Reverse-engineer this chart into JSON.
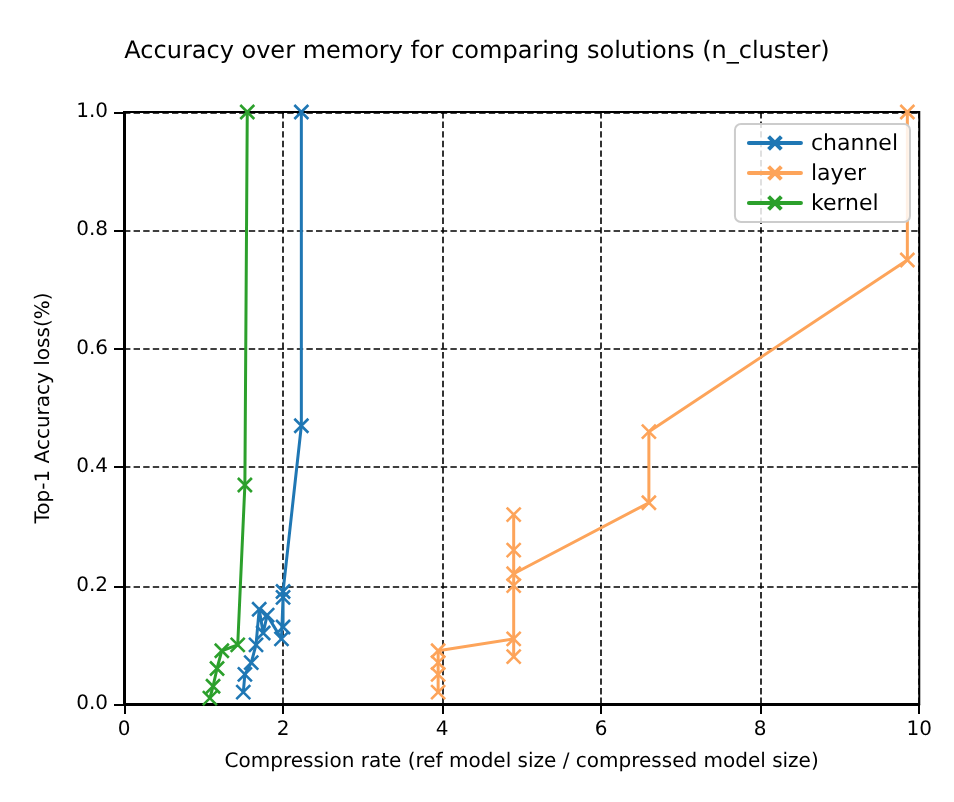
{
  "chart_data": {
    "type": "line",
    "title": "Accuracy over memory for comparing solutions (n_cluster)",
    "xlabel": "Compression rate (ref model size / compressed model size)",
    "ylabel": "Top-1 Accuracy loss(%)",
    "xlim": [
      0,
      10
    ],
    "xticks": [
      0,
      2,
      4,
      6,
      8,
      10
    ],
    "ylim": [
      0,
      1
    ],
    "yticks": [
      {
        "value": 0,
        "label": "0.0"
      },
      {
        "value": 0.2,
        "label": "0.2"
      },
      {
        "value": 0.4,
        "label": "0.4"
      },
      {
        "value": 0.6,
        "label": "0.6"
      },
      {
        "value": 0.8,
        "label": "0.8"
      },
      {
        "value": 1,
        "label": "1.0"
      }
    ],
    "grid": true,
    "legend": "top right",
    "marker": "cross",
    "line_style": "solid",
    "series": [
      {
        "name": "channel",
        "color": "#1f77b4",
        "x": [
          1.5,
          1.52,
          1.6,
          1.66,
          1.7,
          1.75,
          1.8,
          1.98,
          2.0,
          2.0,
          2.0,
          2.23,
          2.23
        ],
        "values": [
          0.02,
          0.05,
          0.07,
          0.1,
          0.16,
          0.12,
          0.15,
          0.11,
          0.18,
          0.13,
          0.19,
          0.47,
          1.0
        ]
      },
      {
        "name": "layer",
        "color": "#fda45a",
        "x": [
          3.95,
          3.95,
          3.95,
          3.95,
          4.9,
          4.9,
          4.9,
          4.9,
          4.9,
          4.9,
          6.6,
          6.6,
          9.85,
          9.85
        ],
        "values": [
          0.02,
          0.05,
          0.07,
          0.09,
          0.11,
          0.08,
          0.32,
          0.26,
          0.2,
          0.22,
          0.34,
          0.46,
          0.75,
          1.0
        ]
      },
      {
        "name": "kernel",
        "color": "#2ca02c",
        "x": [
          1.08,
          1.12,
          1.17,
          1.23,
          1.43,
          1.52,
          1.55
        ],
        "values": [
          0.01,
          0.03,
          0.06,
          0.09,
          0.1,
          0.37,
          1.0
        ]
      }
    ]
  }
}
